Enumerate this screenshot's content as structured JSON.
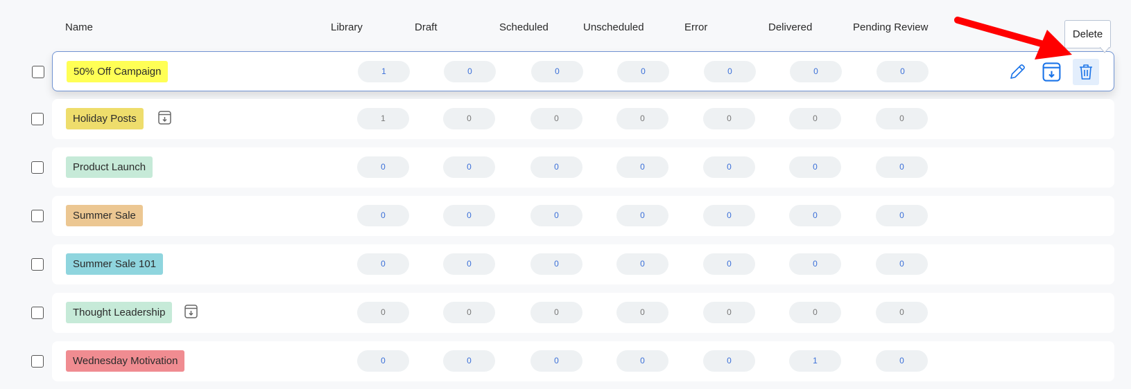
{
  "columns": {
    "name": "Name",
    "library": "Library",
    "draft": "Draft",
    "scheduled": "Scheduled",
    "unscheduled": "Unscheduled",
    "error": "Error",
    "delivered": "Delivered",
    "pending_review": "Pending Review"
  },
  "rows": [
    {
      "name": "50% Off Campaign",
      "color": "#ffff55",
      "archived": false,
      "hover": true,
      "counts": [
        1,
        0,
        0,
        0,
        0,
        0,
        0
      ]
    },
    {
      "name": "Holiday Posts",
      "color": "#eedd6c",
      "archived": true,
      "hover": false,
      "counts": [
        1,
        0,
        0,
        0,
        0,
        0,
        0
      ]
    },
    {
      "name": "Product Launch",
      "color": "#c6ead8",
      "archived": false,
      "hover": false,
      "counts": [
        0,
        0,
        0,
        0,
        0,
        0,
        0
      ]
    },
    {
      "name": "Summer Sale",
      "color": "#ecc792",
      "archived": false,
      "hover": false,
      "counts": [
        0,
        0,
        0,
        0,
        0,
        0,
        0
      ]
    },
    {
      "name": "Summer Sale 101",
      "color": "#8fd5de",
      "archived": false,
      "hover": false,
      "counts": [
        0,
        0,
        0,
        0,
        0,
        0,
        0
      ]
    },
    {
      "name": "Thought Leadership",
      "color": "#c6ead8",
      "archived": true,
      "hover": false,
      "counts": [
        0,
        0,
        0,
        0,
        0,
        0,
        0
      ]
    },
    {
      "name": "Wednesday Motivation",
      "color": "#f08c91",
      "archived": false,
      "hover": false,
      "counts": [
        0,
        0,
        0,
        0,
        0,
        1,
        0
      ]
    }
  ],
  "actions": {
    "edit": "pencil-icon",
    "archive": "archive-download-icon",
    "delete": "trash-icon"
  },
  "tooltip": {
    "delete": "Delete"
  },
  "colors": {
    "active_count": "#3a6fd8",
    "archived_count": "#777777",
    "accent": "#1a73e8",
    "annotation_arrow": "#ff0000"
  }
}
